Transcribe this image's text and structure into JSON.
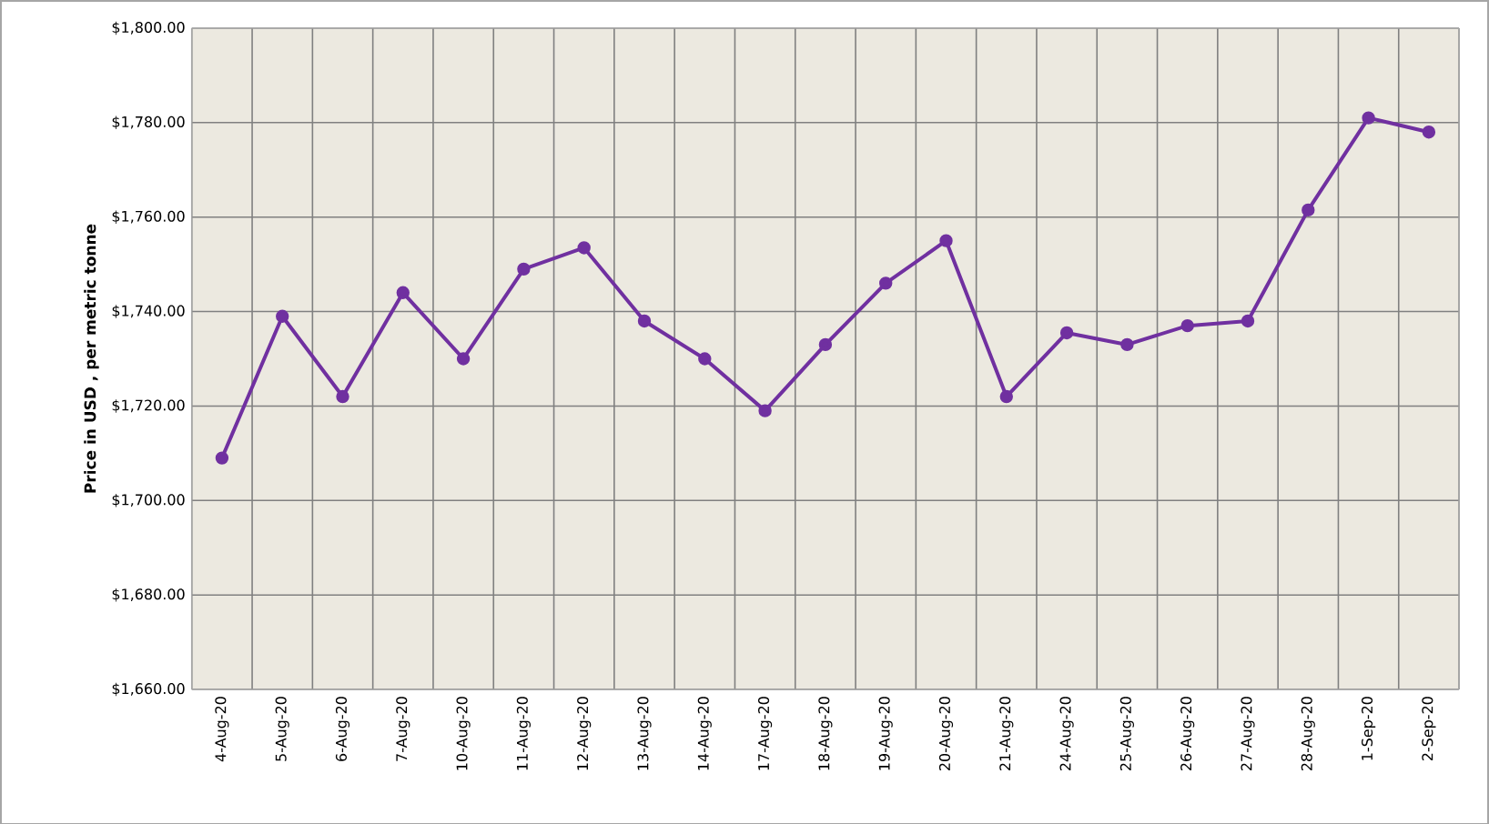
{
  "chart_data": {
    "type": "line",
    "ylabel": "Price in USD , per metric tonne",
    "categories": [
      "4-Aug-20",
      "5-Aug-20",
      "6-Aug-20",
      "7-Aug-20",
      "10-Aug-20",
      "11-Aug-20",
      "12-Aug-20",
      "13-Aug-20",
      "14-Aug-20",
      "17-Aug-20",
      "18-Aug-20",
      "19-Aug-20",
      "20-Aug-20",
      "21-Aug-20",
      "24-Aug-20",
      "25-Aug-20",
      "26-Aug-20",
      "27-Aug-20",
      "28-Aug-20",
      "1-Sep-20",
      "2-Sep-20"
    ],
    "series": [
      {
        "color": "#7030a0",
        "values": [
          1709,
          1739,
          1722,
          1744,
          1730,
          1749,
          1753.5,
          1738,
          1730,
          1719,
          1733,
          1746,
          1755,
          1722,
          1735.5,
          1733,
          1737,
          1738,
          1761.5,
          1781,
          1778
        ]
      }
    ],
    "ylim": [
      1660,
      1800
    ],
    "yticks": [
      {
        "value": 1660,
        "label": "$1,660.00"
      },
      {
        "value": 1680,
        "label": "$1,680.00"
      },
      {
        "value": 1700,
        "label": "$1,700.00"
      },
      {
        "value": 1720,
        "label": "$1,720.00"
      },
      {
        "value": 1740,
        "label": "$1,740.00"
      },
      {
        "value": 1760,
        "label": "$1,760.00"
      },
      {
        "value": 1780,
        "label": "$1,780.00"
      },
      {
        "value": 1800,
        "label": "$1,800.00"
      }
    ],
    "grid": true,
    "marker": "circle",
    "line_style": "solid"
  }
}
